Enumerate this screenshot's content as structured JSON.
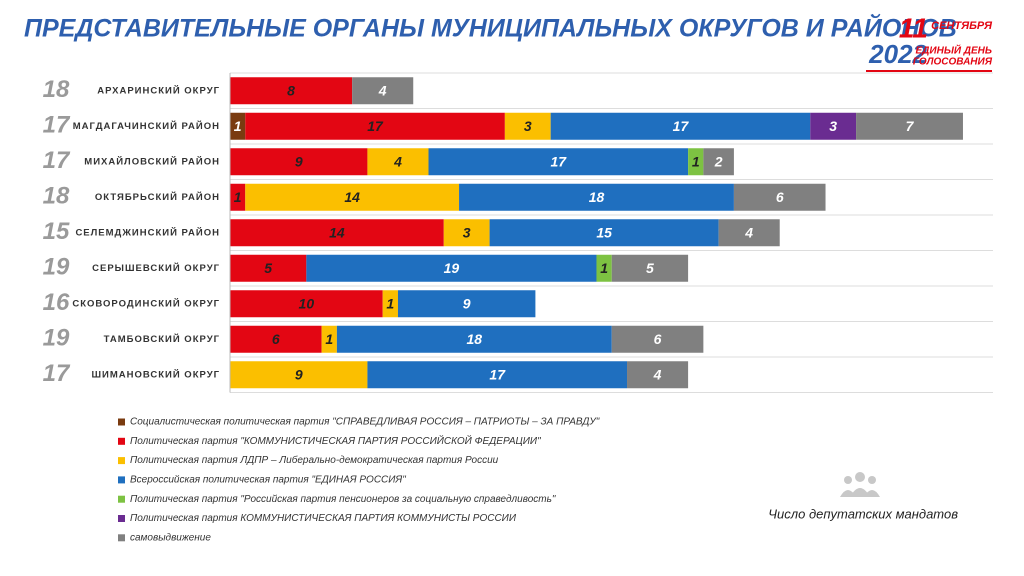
{
  "chart_data": {
    "type": "stacked-bar",
    "title": "ПРЕДСТАВИТЕЛЬНЫЕ ОРГАНЫ МУНИЦИПАЛЬНЫХ ОКРУГОВ И РАЙОНОВ",
    "logo": {
      "day": "11",
      "month": "СЕНТЯБРЯ",
      "year": "2022",
      "line1": "ЕДИНЫЙ ДЕНЬ",
      "line2": "ГОЛОСОВАНИЯ"
    },
    "footnote": "Число депутатских мандатов",
    "categories": [
      "АРХАРИНСКИЙ ОКРУГ",
      "МАГДАГАЧИНСКИЙ РАЙОН",
      "МИХАЙЛОВСКИЙ РАЙОН",
      "ОКТЯБРЬСКИЙ РАЙОН",
      "СЕЛЕМДЖИНСКИЙ РАЙОН",
      "СЕРЫШЕВСКИЙ ОКРУГ",
      "СКОВОРОДИНСКИЙ ОКРУГ",
      "ТАМБОВСКИЙ ОКРУГ",
      "ШИМАНОВСКИЙ ОКРУГ"
    ],
    "seats": [
      18,
      17,
      17,
      18,
      15,
      19,
      16,
      19,
      17
    ],
    "series": [
      {
        "name": "Социалистическая политическая партия \"СПРАВЕДЛИВАЯ РОССИЯ – ПАТРИОТЫ – ЗА ПРАВДУ\"",
        "color": "#7a3b10",
        "values": [
          null,
          1,
          null,
          null,
          null,
          null,
          null,
          null,
          null
        ]
      },
      {
        "name": "Политическая партия \"КОММУНИСТИЧЕСКАЯ ПАРТИЯ РОССИЙСКОЙ ФЕДЕРАЦИИ\"",
        "color": "#e30613",
        "values": [
          8,
          17,
          9,
          1,
          14,
          5,
          10,
          6,
          null
        ]
      },
      {
        "name": "Политическая партия ЛДПР – Либерально-демократическая партия России",
        "color": "#fbbf00",
        "values": [
          null,
          3,
          4,
          14,
          3,
          null,
          1,
          1,
          9
        ]
      },
      {
        "name": "Всероссийская политическая партия \"ЕДИНАЯ РОССИЯ\"",
        "color": "#1f6fbf",
        "values": [
          null,
          17,
          17,
          18,
          15,
          19,
          9,
          18,
          17
        ]
      },
      {
        "name": "Политическая партия \"Российская партия пенсионеров за социальную справедливость\"",
        "color": "#7dc242",
        "values": [
          null,
          null,
          1,
          null,
          null,
          1,
          null,
          null,
          null
        ]
      },
      {
        "name": "Политическая партия КОММУНИСТИЧЕСКАЯ ПАРТИЯ КОММУНИСТЫ РОССИИ",
        "color": "#6a2c91",
        "values": [
          null,
          3,
          null,
          null,
          null,
          null,
          null,
          null,
          null
        ]
      },
      {
        "name": "самовыдвижение",
        "color": "#808080",
        "values": [
          4,
          7,
          2,
          6,
          4,
          5,
          null,
          6,
          4
        ]
      }
    ]
  }
}
